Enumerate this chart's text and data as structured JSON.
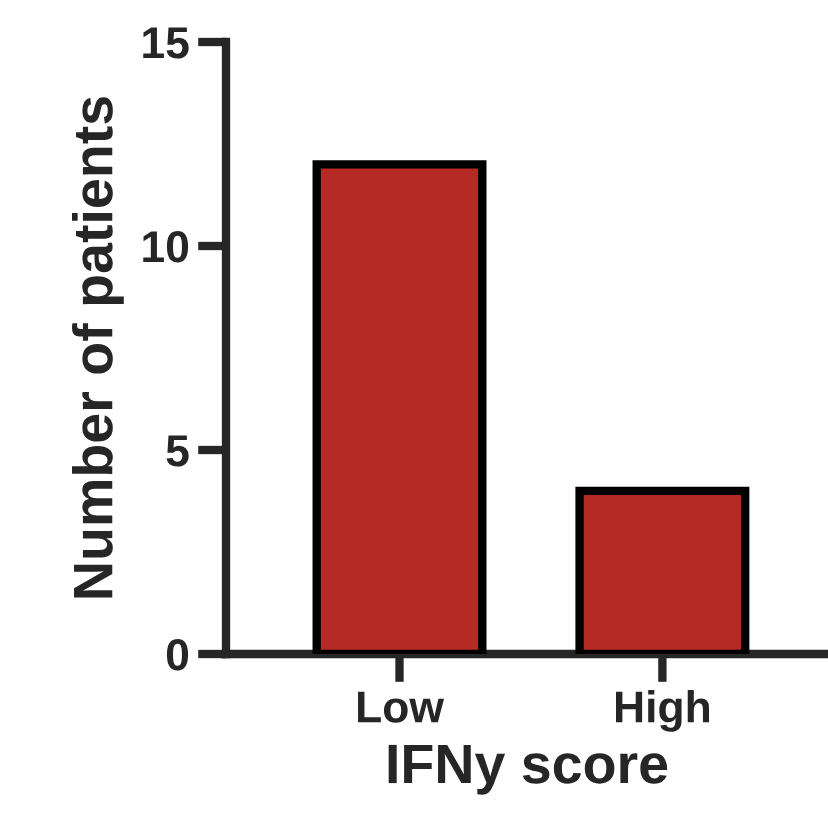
{
  "chart_data": {
    "type": "bar",
    "xlabel": "IFNy score",
    "ylabel": "Number of patients",
    "categories": [
      "Low",
      "High"
    ],
    "values": [
      12,
      4
    ],
    "color": "#b52a25",
    "ylim": [
      0,
      15
    ],
    "yticks": [
      0,
      5,
      10,
      15
    ],
    "grid": false,
    "legend": false
  }
}
